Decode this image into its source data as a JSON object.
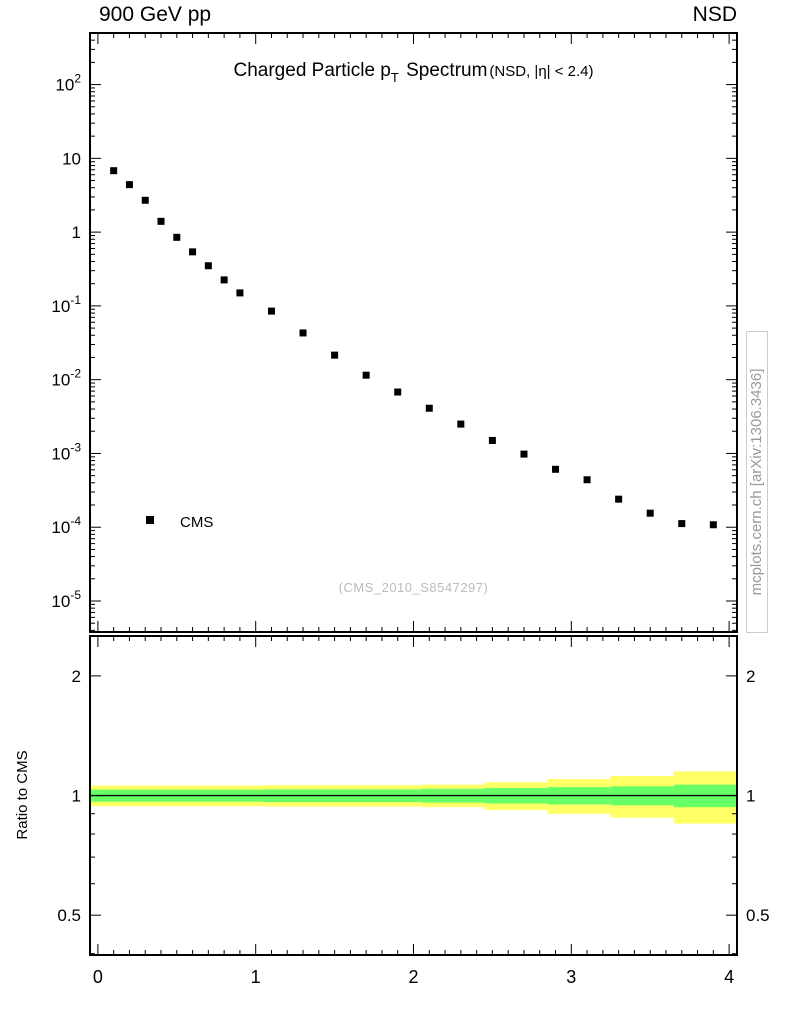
{
  "header": {
    "left": "900 GeV pp",
    "right": "NSD"
  },
  "title": {
    "main1": "Charged Particle p",
    "sub": "T",
    "main2": " Spectrum",
    "paren": "(NSD, |η| < 2.4)"
  },
  "watermark": "(CMS_2010_S8547297)",
  "side_note": "mcplots.cern.ch [arXiv:1306.3436]",
  "ratio_ylabel": "Ratio to CMS",
  "legend": {
    "label": "CMS"
  },
  "colors": {
    "marker": "#000000",
    "band_outer": "#ffff66",
    "band_inner": "#66ff66",
    "ref_line": "#000000",
    "frame": "#000000",
    "watermark": "#bbbbbb",
    "side_note": "#999999"
  },
  "chart_data": {
    "type": "scatter",
    "title": "Charged Particle pT Spectrum (NSD, |eta| < 2.4)",
    "xlabel": "",
    "ylabel": "",
    "xlim": [
      -0.05,
      4.05
    ],
    "xticks": [
      0,
      1,
      2,
      3,
      4
    ],
    "grid": false,
    "legend_position": "left-middle",
    "panels": [
      {
        "name": "spectrum",
        "yscale": "log",
        "ylim": [
          3.8e-06,
          500
        ],
        "yticks_exp": [
          2,
          1,
          0,
          -1,
          -2,
          -3,
          -4,
          -5
        ],
        "series": [
          {
            "name": "CMS",
            "marker": "square",
            "color": "#000000",
            "x": [
              0.1,
              0.2,
              0.3,
              0.4,
              0.5,
              0.6,
              0.7,
              0.8,
              0.9,
              1.1,
              1.3,
              1.5,
              1.7,
              1.9,
              2.1,
              2.3,
              2.5,
              2.7,
              2.9,
              3.1,
              3.3,
              3.5,
              3.7,
              3.9
            ],
            "y": [
              6.8,
              4.4,
              2.7,
              1.4,
              0.85,
              0.54,
              0.35,
              0.225,
              0.15,
              0.085,
              0.043,
              0.0215,
              0.0115,
              0.0068,
              0.0041,
              0.0025,
              0.0015,
              0.00098,
              0.00061,
              0.00044,
              0.00024,
              0.000155,
              0.000112,
              0.000108
            ]
          }
        ]
      },
      {
        "name": "ratio",
        "yscale": "log",
        "ylim": [
          0.397,
          2.52
        ],
        "ref_line": 1.0,
        "yticks": [
          {
            "v": 2,
            "label": "2"
          },
          {
            "v": 1,
            "label": "1"
          },
          {
            "v": 0.5,
            "label": "0.5"
          }
        ],
        "yticks_minor": [
          0.4,
          0.6,
          0.7,
          0.8,
          0.9
        ],
        "bands": {
          "outer": [
            {
              "x1": -0.05,
              "x2": 1.05,
              "lo": 0.94,
              "hi": 1.06
            },
            {
              "x1": 1.05,
              "x2": 2.05,
              "lo": 0.938,
              "hi": 1.062
            },
            {
              "x1": 2.05,
              "x2": 2.45,
              "lo": 0.935,
              "hi": 1.065
            },
            {
              "x1": 2.45,
              "x2": 2.85,
              "lo": 0.92,
              "hi": 1.08
            },
            {
              "x1": 2.85,
              "x2": 3.25,
              "lo": 0.9,
              "hi": 1.1
            },
            {
              "x1": 3.25,
              "x2": 3.65,
              "lo": 0.88,
              "hi": 1.12
            },
            {
              "x1": 3.65,
              "x2": 4.05,
              "lo": 0.85,
              "hi": 1.15
            }
          ],
          "inner": [
            {
              "x1": -0.05,
              "x2": 1.05,
              "lo": 0.965,
              "hi": 1.035
            },
            {
              "x1": 1.05,
              "x2": 2.05,
              "lo": 0.963,
              "hi": 1.037
            },
            {
              "x1": 2.05,
              "x2": 2.45,
              "lo": 0.96,
              "hi": 1.04
            },
            {
              "x1": 2.45,
              "x2": 2.85,
              "lo": 0.955,
              "hi": 1.045
            },
            {
              "x1": 2.85,
              "x2": 3.25,
              "lo": 0.95,
              "hi": 1.05
            },
            {
              "x1": 3.25,
              "x2": 3.65,
              "lo": 0.945,
              "hi": 1.055
            },
            {
              "x1": 3.65,
              "x2": 4.05,
              "lo": 0.935,
              "hi": 1.065
            }
          ]
        }
      }
    ]
  }
}
